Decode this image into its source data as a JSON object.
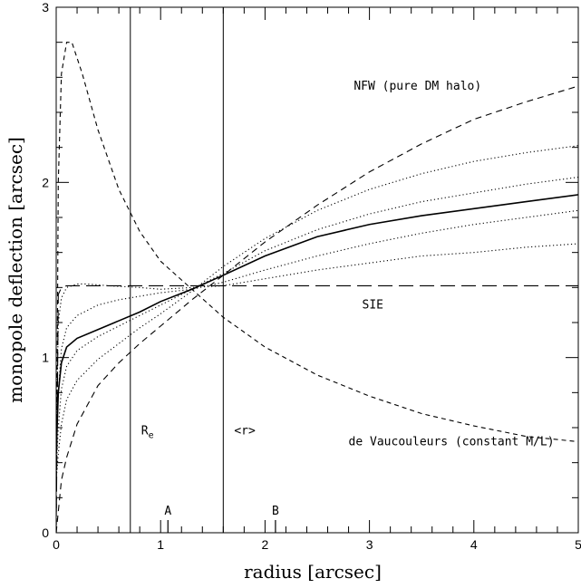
{
  "chart_data": {
    "type": "line",
    "xlabel": "radius [arcsec]",
    "ylabel": "monopole deflection [arcsec]",
    "xlim": [
      0,
      5
    ],
    "ylim": [
      0,
      3
    ],
    "xticks": [
      "0",
      "1",
      "2",
      "3",
      "4",
      "5"
    ],
    "yticks": [
      "0",
      "1",
      "2",
      "3"
    ],
    "grid": false,
    "vlines": [
      {
        "x": 0.71,
        "label": "R",
        "sub": "e"
      },
      {
        "x": 1.6,
        "label": "<r>"
      }
    ],
    "markers": [
      {
        "x": 1.07,
        "label": "A"
      },
      {
        "x": 2.1,
        "label": "B"
      }
    ],
    "annotations": [
      {
        "text": "NFW (pure DM halo)",
        "x": 2.85,
        "y": 2.53
      },
      {
        "text": "SIE",
        "x": 2.93,
        "y": 1.28
      },
      {
        "text": "de Vaucouleurs (constant M/L)",
        "x": 2.8,
        "y": 0.5
      }
    ],
    "series": [
      {
        "style": "dashed",
        "x": [
          0,
          0.05,
          0.1,
          0.2,
          0.4,
          0.6,
          0.8,
          1.0,
          1.3,
          1.6,
          2.0,
          2.5,
          3.0,
          3.5,
          4.0,
          4.5,
          5.0
        ],
        "y": [
          0.0,
          0.3,
          0.43,
          0.62,
          0.84,
          0.97,
          1.08,
          1.18,
          1.33,
          1.47,
          1.66,
          1.87,
          2.06,
          2.22,
          2.36,
          2.46,
          2.55
        ]
      },
      {
        "style": "longdash",
        "x": [
          0,
          0.02,
          0.05,
          0.1,
          0.3,
          1.0,
          2.0,
          3.0,
          4.0,
          5.0
        ],
        "y": [
          0.0,
          1.36,
          1.4,
          1.41,
          1.41,
          1.41,
          1.41,
          1.41,
          1.41,
          1.41
        ]
      },
      {
        "style": "shortdash",
        "x": [
          0,
          0.02,
          0.05,
          0.1,
          0.15,
          0.25,
          0.4,
          0.6,
          0.8,
          1.0,
          1.3,
          1.6,
          2.0,
          2.5,
          3.0,
          3.5,
          4.0,
          4.5,
          5.0
        ],
        "y": [
          0.0,
          2.0,
          2.62,
          2.8,
          2.8,
          2.62,
          2.3,
          1.96,
          1.72,
          1.55,
          1.39,
          1.23,
          1.06,
          0.9,
          0.78,
          0.68,
          0.61,
          0.55,
          0.52
        ]
      },
      {
        "style": "solid",
        "x": [
          0,
          0.02,
          0.05,
          0.1,
          0.2,
          0.4,
          0.6,
          0.8,
          1.0,
          1.3,
          1.6,
          2.0,
          2.5,
          3.0,
          3.5,
          4.0,
          4.5,
          5.0
        ],
        "y": [
          0.45,
          0.8,
          0.97,
          1.06,
          1.11,
          1.16,
          1.21,
          1.26,
          1.32,
          1.39,
          1.47,
          1.58,
          1.69,
          1.76,
          1.81,
          1.85,
          1.89,
          1.93
        ]
      },
      {
        "style": "dotted",
        "x": [
          0,
          0.02,
          0.05,
          0.1,
          0.2,
          0.3,
          0.5,
          0.8,
          1.0,
          1.3,
          1.6,
          2.0,
          2.5,
          3.0,
          3.5,
          4.0,
          4.5,
          5.0
        ],
        "y": [
          0.5,
          1.2,
          1.34,
          1.4,
          1.42,
          1.42,
          1.41,
          1.4,
          1.39,
          1.4,
          1.41,
          1.45,
          1.5,
          1.54,
          1.58,
          1.6,
          1.63,
          1.65
        ]
      },
      {
        "style": "dotted",
        "x": [
          0,
          0.02,
          0.05,
          0.1,
          0.2,
          0.4,
          0.6,
          0.8,
          1.0,
          1.3,
          1.6,
          2.0,
          2.5,
          3.0,
          3.5,
          4.0,
          4.5,
          5.0
        ],
        "y": [
          0.4,
          0.8,
          1.05,
          1.17,
          1.24,
          1.3,
          1.33,
          1.35,
          1.37,
          1.39,
          1.43,
          1.5,
          1.58,
          1.65,
          1.71,
          1.76,
          1.8,
          1.84
        ]
      },
      {
        "style": "dotted",
        "x": [
          0,
          0.02,
          0.05,
          0.1,
          0.2,
          0.4,
          0.6,
          0.8,
          1.0,
          1.3,
          1.6,
          2.0,
          2.5,
          3.0,
          3.5,
          4.0,
          4.5,
          5.0
        ],
        "y": [
          0.35,
          0.6,
          0.82,
          0.95,
          1.04,
          1.12,
          1.18,
          1.24,
          1.3,
          1.39,
          1.48,
          1.61,
          1.73,
          1.82,
          1.89,
          1.94,
          1.99,
          2.03
        ]
      },
      {
        "style": "dotted",
        "x": [
          0,
          0.02,
          0.05,
          0.1,
          0.2,
          0.4,
          0.6,
          0.8,
          1.0,
          1.3,
          1.6,
          2.0,
          2.5,
          3.0,
          3.5,
          4.0,
          4.5,
          5.0
        ],
        "y": [
          0.3,
          0.45,
          0.62,
          0.76,
          0.87,
          0.99,
          1.08,
          1.17,
          1.25,
          1.38,
          1.52,
          1.68,
          1.84,
          1.96,
          2.05,
          2.12,
          2.17,
          2.21
        ]
      }
    ]
  }
}
